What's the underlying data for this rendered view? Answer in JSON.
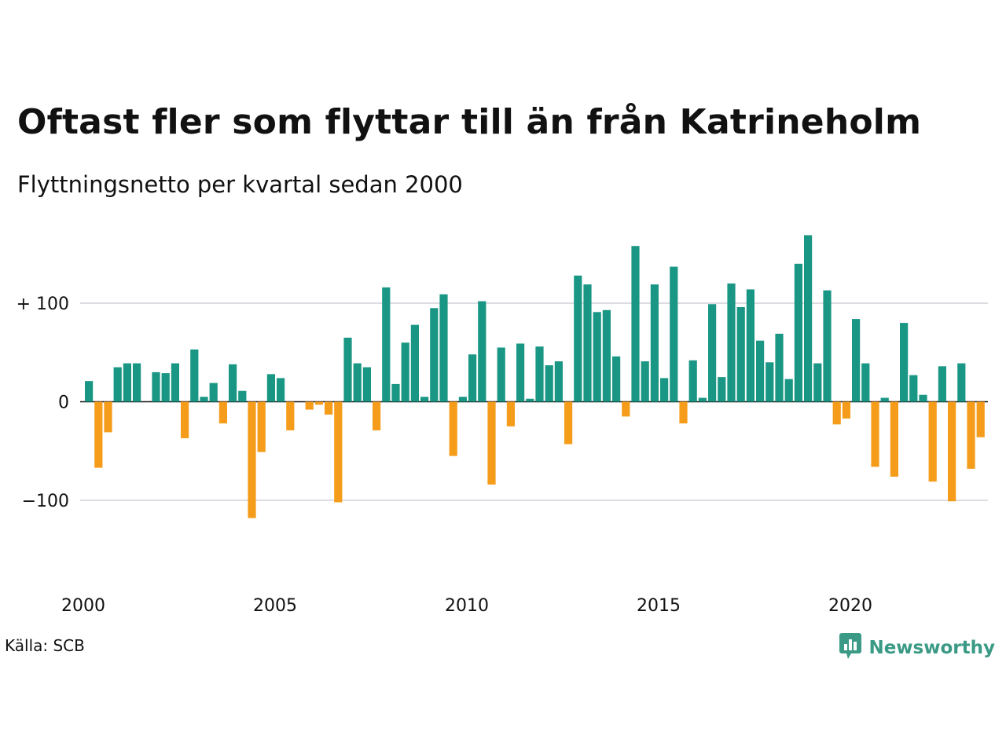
{
  "header": {
    "title": "Oftast fler som flyttar till än från Katrineholm",
    "subtitle": "Flyttningsnetto per kvartal sedan 2000"
  },
  "footer": {
    "source": "Källa: SCB",
    "brand": "Newsworthy",
    "brand_icon": "bar-chart-chat-icon"
  },
  "colors": {
    "positive": "#1a9784",
    "negative": "#f59c1a",
    "grid": "#dcdce2",
    "zero_line": "#111111",
    "brand": "#3a9a85"
  },
  "chart_data": {
    "type": "bar",
    "title": "Oftast fler som flyttar till än från Katrineholm",
    "subtitle": "Flyttningsnetto per kvartal sedan 2000",
    "x_start": "2000 Q1",
    "x_tick_labels": [
      "2000",
      "2005",
      "2010",
      "2015",
      "2020"
    ],
    "y_tick_labels": [
      "+ 100",
      "0",
      "−100"
    ],
    "y_ticks": [
      100,
      0,
      -100
    ],
    "ylim": [
      -170,
      170
    ],
    "grid": true,
    "values": [
      21,
      -67,
      -31,
      35,
      39,
      39,
      0,
      30,
      29,
      39,
      -37,
      53,
      5,
      19,
      -22,
      38,
      11,
      -118,
      -51,
      28,
      24,
      -29,
      0,
      -8,
      -3,
      -13,
      -102,
      65,
      39,
      35,
      -29,
      116,
      18,
      60,
      78,
      5,
      95,
      109,
      -55,
      5,
      48,
      102,
      -84,
      55,
      -25,
      59,
      3,
      56,
      37,
      41,
      -43,
      128,
      119,
      91,
      93,
      46,
      -15,
      158,
      41,
      119,
      24,
      137,
      -22,
      42,
      4,
      99,
      25,
      120,
      96,
      114,
      62,
      40,
      69,
      23,
      140,
      169,
      39,
      113,
      -23,
      -17,
      84,
      39,
      -66,
      4,
      -76,
      80,
      27,
      7,
      -81,
      36,
      -101,
      39,
      -68,
      -36
    ]
  }
}
